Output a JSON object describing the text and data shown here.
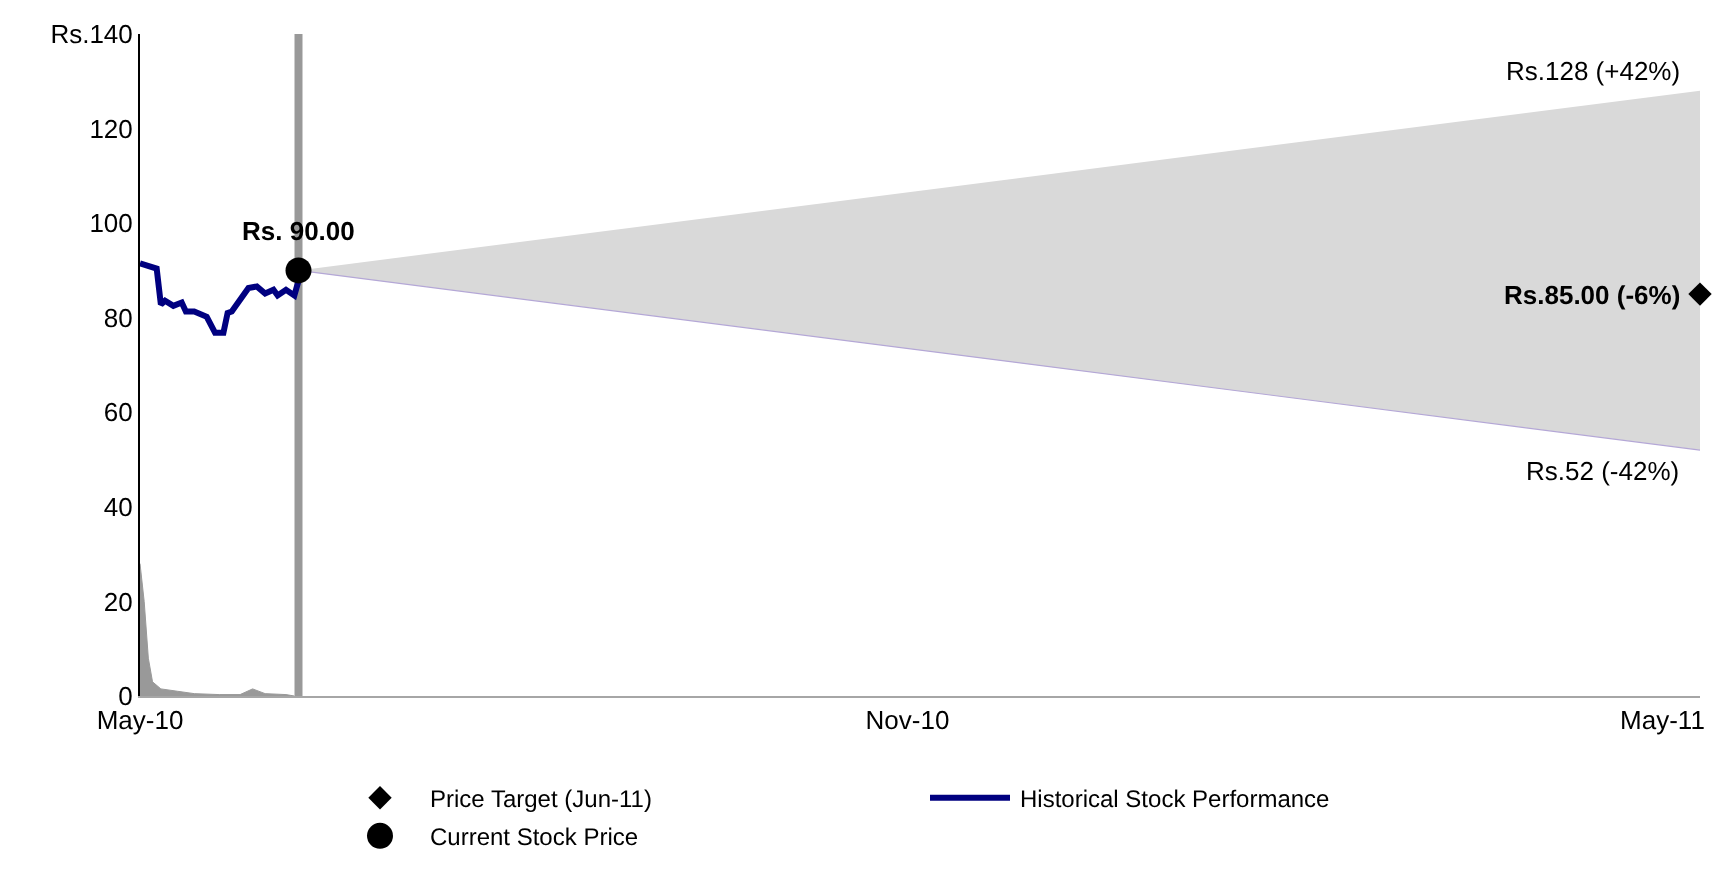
{
  "chart_data": {
    "type": "line",
    "xlim": [
      "2010-05-01",
      "2011-05-10"
    ],
    "xticks": [
      {
        "value": "2010-05-01",
        "label": "May-10"
      },
      {
        "value": "2010-11-01",
        "label": "Nov-10"
      },
      {
        "value": "2011-05-01",
        "label": "May-11"
      }
    ],
    "ylim": [
      0,
      140
    ],
    "yticks": [
      0,
      20,
      40,
      60,
      80,
      100,
      120,
      {
        "value": 140,
        "label": "Rs.140"
      }
    ],
    "grid": false,
    "legend": "bottom",
    "series": [
      {
        "type": "area",
        "color": "#d9d9d9",
        "x": [
          "2010-06-08",
          "2011-05-10"
        ],
        "values": [
          null,
          null
        ],
        "lower": [
          90,
          52
        ],
        "upper": [
          90,
          128
        ]
      },
      {
        "type": "area",
        "color": "#999999",
        "x": [
          "2010-05-01",
          "2010-05-02",
          "2010-05-03",
          "2010-05-04",
          "2010-05-06",
          "2010-05-10",
          "2010-05-14",
          "2010-05-20",
          "2010-05-25",
          "2010-05-28",
          "2010-05-31",
          "2010-06-05",
          "2010-06-07"
        ],
        "values": [
          28,
          20,
          8,
          3,
          1.5,
          1,
          0.5,
          0.3,
          0.3,
          1.5,
          0.5,
          0.3,
          0
        ]
      },
      {
        "type": "scatter",
        "name": "Price Target (Jun-11)",
        "color": "#000000",
        "marker": "diamond",
        "x": [
          "2011-05-10"
        ],
        "values": [
          85
        ]
      },
      {
        "name": "Historical Stock Performance",
        "color": "#000080",
        "marker": "none",
        "x": [
          "2010-05-01",
          "2010-05-05",
          "2010-05-06",
          "2010-05-07",
          "2010-05-09",
          "2010-05-11",
          "2010-05-12",
          "2010-05-14",
          "2010-05-17",
          "2010-05-19",
          "2010-05-21",
          "2010-05-22",
          "2010-05-23",
          "2010-05-27",
          "2010-05-29",
          "2010-05-31",
          "2010-06-02",
          "2010-06-03",
          "2010-06-05",
          "2010-06-07",
          "2010-06-08"
        ],
        "values": [
          91.5,
          90.4,
          82.8,
          83.6,
          82.5,
          83.2,
          81.3,
          81.3,
          80.2,
          76.8,
          76.8,
          81.0,
          81.3,
          86.3,
          86.6,
          85.1,
          85.9,
          84.7,
          85.9,
          84.7,
          87.8
        ]
      },
      {
        "type": "scatter",
        "name": "Current Stock Price",
        "color": "#000000",
        "marker": "circle",
        "x": [
          "2010-06-08"
        ],
        "values": [
          90
        ]
      }
    ],
    "ref_lines": [
      {
        "axis": "x",
        "value": "2010-06-08",
        "label": null,
        "color": "#999999"
      }
    ],
    "annotations": [
      {
        "text": "Rs. 90.00",
        "x": "2010-06-08",
        "y": 90
      },
      {
        "text": "Rs.128 (+42%)",
        "x": "2011-05-10",
        "y": 128
      },
      {
        "text": "Rs.85.00 (-6%)",
        "x": "2011-05-10",
        "y": 85
      },
      {
        "text": "Rs.52 (-42%)",
        "x": "2011-05-10",
        "y": 52
      }
    ]
  }
}
